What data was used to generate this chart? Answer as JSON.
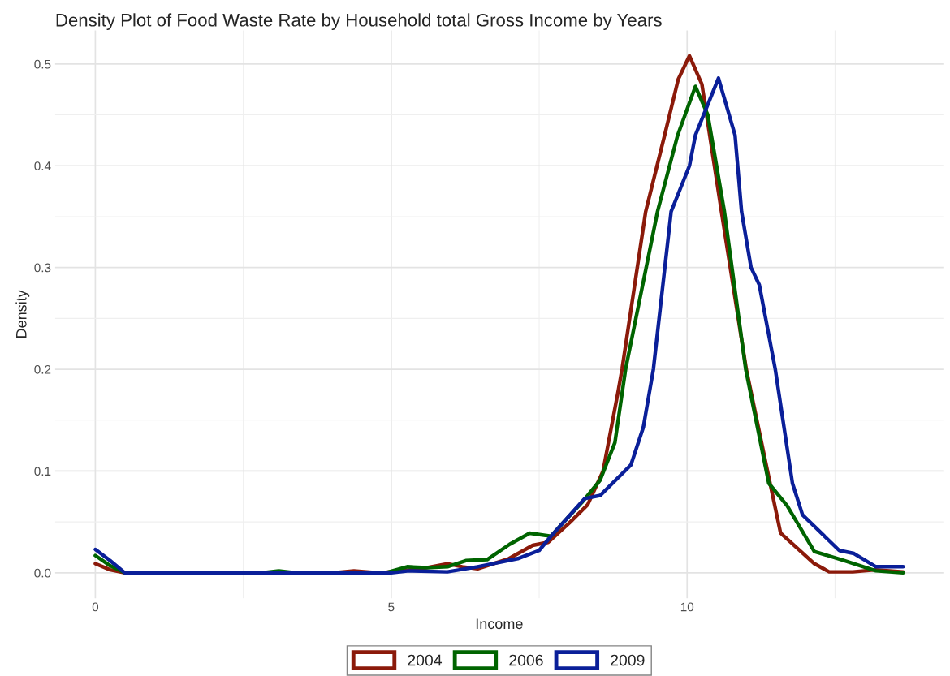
{
  "chart_data": {
    "type": "line",
    "title": "Density Plot of Food Waste Rate by Household total Gross Income by Years",
    "xlabel": "Income",
    "ylabel": "Density",
    "xlim": [
      -0.68,
      14.33
    ],
    "ylim": [
      -0.025,
      0.533
    ],
    "xticks": [
      0,
      5,
      10
    ],
    "yticks": [
      {
        "value": 0,
        "label": "0.0"
      },
      {
        "value": 0.1,
        "label": "0.1"
      },
      {
        "value": 0.2,
        "label": "0.2"
      },
      {
        "value": 0.3,
        "label": "0.3"
      },
      {
        "value": 0.4,
        "label": "0.4"
      },
      {
        "value": 0.5,
        "label": "0.5"
      }
    ],
    "grid": true,
    "legend": "bottom",
    "marker": "none",
    "line_style": "solid",
    "series": [
      {
        "name": "2004",
        "color": "#8b1a0a",
        "x": [
          0,
          0.25,
          0.5,
          2,
          4,
          4.37,
          4.8,
          5.5,
          5.95,
          6.2,
          6.46,
          6.99,
          7.39,
          7.65,
          8.01,
          8.32,
          8.58,
          8.84,
          8.9,
          9.3,
          9.62,
          9.85,
          10.04,
          10.25,
          10.58,
          11.0,
          11.38,
          11.58,
          12.15,
          12.4,
          12.8,
          13.19,
          13.65
        ],
        "values": [
          0.009,
          0.003,
          0,
          0,
          0,
          0.002,
          0,
          0.004,
          0.009,
          0.006,
          0.004,
          0.014,
          0.027,
          0.03,
          0.049,
          0.067,
          0.1,
          0.18,
          0.2,
          0.355,
          0.43,
          0.485,
          0.508,
          0.48,
          0.355,
          0.2,
          0.094,
          0.039,
          0.009,
          0.001,
          0.001,
          0.003,
          0.001
        ]
      },
      {
        "name": "2006",
        "color": "#006400",
        "x": [
          0,
          0.25,
          0.5,
          2.8,
          3.1,
          3.4,
          4.9,
          5.27,
          5.6,
          5.95,
          6.26,
          6.62,
          7.0,
          7.34,
          7.7,
          7.9,
          8.22,
          8.53,
          8.78,
          8.96,
          9.5,
          9.84,
          10.14,
          10.35,
          10.63,
          10.99,
          11.38,
          11.69,
          12.15,
          12.66,
          13.19,
          13.65
        ],
        "values": [
          0.017,
          0.007,
          0,
          0,
          0.002,
          0,
          0,
          0.006,
          0.005,
          0.006,
          0.012,
          0.013,
          0.028,
          0.039,
          0.036,
          0.049,
          0.069,
          0.091,
          0.128,
          0.2,
          0.355,
          0.43,
          0.478,
          0.45,
          0.355,
          0.2,
          0.088,
          0.066,
          0.021,
          0.012,
          0.002,
          0
        ]
      },
      {
        "name": "2009",
        "color": "#0a1f99",
        "x": [
          0,
          0.25,
          0.5,
          5.0,
          5.3,
          5.95,
          6.46,
          7.14,
          7.5,
          7.7,
          8.27,
          8.53,
          9.05,
          9.26,
          9.43,
          9.73,
          10.04,
          10.14,
          10.53,
          10.81,
          10.92,
          11.08,
          11.22,
          11.49,
          11.78,
          11.95,
          12.57,
          12.82,
          13.19,
          13.65
        ],
        "values": [
          0.023,
          0.012,
          0,
          0,
          0.002,
          0.001,
          0.006,
          0.014,
          0.022,
          0.036,
          0.073,
          0.076,
          0.106,
          0.143,
          0.2,
          0.355,
          0.4,
          0.43,
          0.486,
          0.43,
          0.355,
          0.3,
          0.283,
          0.2,
          0.088,
          0.057,
          0.022,
          0.019,
          0.006,
          0.006
        ]
      }
    ]
  }
}
